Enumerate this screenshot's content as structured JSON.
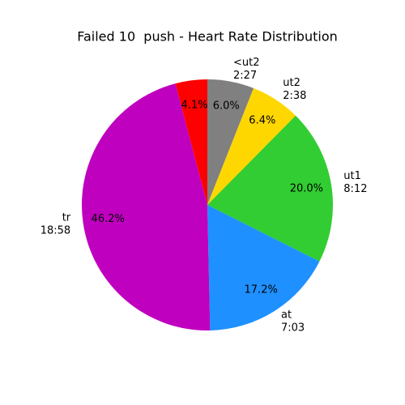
{
  "chart_data": {
    "type": "pie",
    "title": "Failed 10  push - Heart Rate Distribution",
    "categories": [
      "<ut2",
      "ut2",
      "ut1",
      "at",
      "tr",
      null
    ],
    "durations": [
      "2:27",
      "2:38",
      "8:12",
      "7:03",
      "18:58",
      null
    ],
    "values": [
      6.0,
      6.4,
      20.0,
      17.2,
      46.2,
      4.1
    ],
    "value_labels": [
      "6.0%",
      "6.4%",
      "20.0%",
      "17.2%",
      "46.2%",
      "4.1%"
    ],
    "colors": [
      "#808080",
      "#ffd700",
      "#32cd32",
      "#1e90ff",
      "#bf00bf",
      "#ff0000"
    ],
    "direction": "clockwise"
  }
}
